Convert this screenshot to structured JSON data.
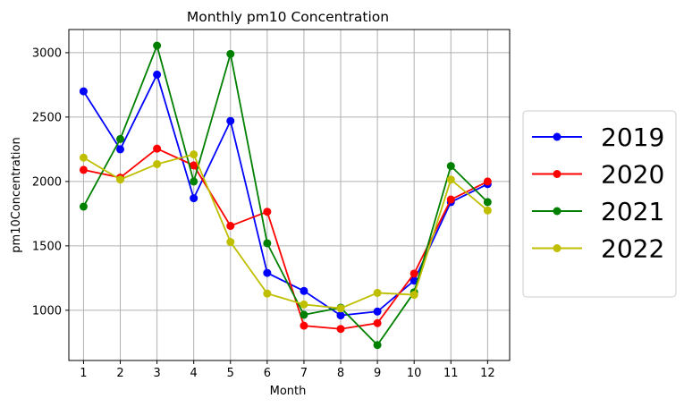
{
  "chart_data": {
    "type": "line",
    "title": "Monthly pm10 Concentration",
    "xlabel": "Month",
    "ylabel": "pm10Concentration",
    "categories": [
      "1",
      "2",
      "3",
      "4",
      "5",
      "6",
      "7",
      "8",
      "9",
      "10",
      "11",
      "12"
    ],
    "x": [
      1,
      2,
      3,
      4,
      5,
      6,
      7,
      8,
      9,
      10,
      11,
      12
    ],
    "xlim": [
      0.6,
      12.6
    ],
    "ylim": [
      610,
      3180
    ],
    "yticks": [
      1000,
      1500,
      2000,
      2500,
      3000
    ],
    "grid": true,
    "legend_position": "outside-right",
    "series": [
      {
        "name": "2019",
        "color": "#0000ff",
        "values": [
          2700,
          2250,
          2830,
          1870,
          2470,
          1290,
          1150,
          960,
          990,
          1230,
          1840,
          1980
        ]
      },
      {
        "name": "2020",
        "color": "#ff0000",
        "values": [
          2090,
          2030,
          2255,
          2125,
          1655,
          1765,
          880,
          855,
          900,
          1285,
          1860,
          2000
        ]
      },
      {
        "name": "2021",
        "color": "#008000",
        "values": [
          1805,
          2330,
          3055,
          2000,
          2990,
          1520,
          965,
          1020,
          730,
          1140,
          2120,
          1840
        ]
      },
      {
        "name": "2022",
        "color": "#bfbf00",
        "values": [
          2185,
          2015,
          2135,
          2210,
          1530,
          1130,
          1045,
          1015,
          1135,
          1120,
          2015,
          1775
        ]
      }
    ]
  }
}
